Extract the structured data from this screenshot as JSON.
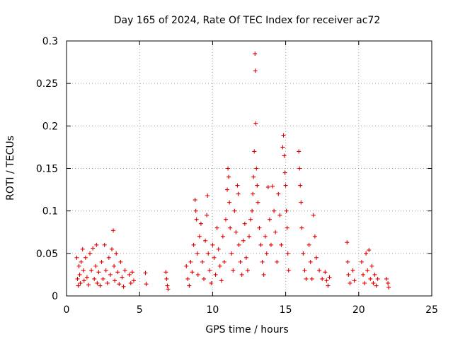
{
  "chart_data": {
    "type": "scatter",
    "title": "Day 165 of 2024, Rate Of TEC Index for receiver ac72",
    "xlabel": "GPS time / hours",
    "ylabel": "ROTI / TECUs",
    "xlim": [
      0,
      25
    ],
    "ylim": [
      0,
      0.3
    ],
    "x_ticks": [
      "0",
      "5",
      "10",
      "15",
      "20",
      "25"
    ],
    "y_ticks": [
      "0",
      "0.05",
      "0.1",
      "0.15",
      "0.2",
      "0.25",
      "0.3"
    ],
    "grid": true,
    "legend": "none",
    "marker": "plus",
    "color": "#e00000",
    "series": [
      {
        "points": [
          [
            0.7,
            0.045
          ],
          [
            0.75,
            0.02
          ],
          [
            0.8,
            0.012
          ],
          [
            0.85,
            0.035
          ],
          [
            0.9,
            0.025
          ],
          [
            0.95,
            0.015
          ],
          [
            1.0,
            0.04
          ],
          [
            1.1,
            0.055
          ],
          [
            1.15,
            0.03
          ],
          [
            1.2,
            0.018
          ],
          [
            1.3,
            0.045
          ],
          [
            1.4,
            0.022
          ],
          [
            1.5,
            0.013
          ],
          [
            1.6,
            0.05
          ],
          [
            1.7,
            0.03
          ],
          [
            1.8,
            0.056
          ],
          [
            1.9,
            0.02
          ],
          [
            2.0,
            0.035
          ],
          [
            2.05,
            0.06
          ],
          [
            2.1,
            0.015
          ],
          [
            2.2,
            0.028
          ],
          [
            2.3,
            0.012
          ],
          [
            2.4,
            0.04
          ],
          [
            2.5,
            0.02
          ],
          [
            2.6,
            0.06
          ],
          [
            2.7,
            0.03
          ],
          [
            2.8,
            0.015
          ],
          [
            2.9,
            0.045
          ],
          [
            3.0,
            0.025
          ],
          [
            3.1,
            0.055
          ],
          [
            3.2,
            0.077
          ],
          [
            3.25,
            0.035
          ],
          [
            3.3,
            0.018
          ],
          [
            3.4,
            0.05
          ],
          [
            3.5,
            0.028
          ],
          [
            3.6,
            0.014
          ],
          [
            3.7,
            0.04
          ],
          [
            3.8,
            0.022
          ],
          [
            3.9,
            0.011
          ],
          [
            4.0,
            0.03
          ],
          [
            4.3,
            0.025
          ],
          [
            4.4,
            0.015
          ],
          [
            4.5,
            0.028
          ],
          [
            4.6,
            0.018
          ],
          [
            5.4,
            0.027
          ],
          [
            5.45,
            0.014
          ],
          [
            6.8,
            0.028
          ],
          [
            6.85,
            0.02
          ],
          [
            6.9,
            0.012
          ],
          [
            6.95,
            0.008
          ],
          [
            8.2,
            0.035
          ],
          [
            8.3,
            0.02
          ],
          [
            8.4,
            0.012
          ],
          [
            8.5,
            0.04
          ],
          [
            8.6,
            0.028
          ],
          [
            8.7,
            0.06
          ],
          [
            8.8,
            0.113
          ],
          [
            8.85,
            0.1
          ],
          [
            8.9,
            0.09
          ],
          [
            8.95,
            0.05
          ],
          [
            9.0,
            0.025
          ],
          [
            9.1,
            0.07
          ],
          [
            9.2,
            0.085
          ],
          [
            9.3,
            0.04
          ],
          [
            9.4,
            0.02
          ],
          [
            9.5,
            0.065
          ],
          [
            9.6,
            0.095
          ],
          [
            9.65,
            0.118
          ],
          [
            9.7,
            0.05
          ],
          [
            9.8,
            0.03
          ],
          [
            9.9,
            0.015
          ],
          [
            10.0,
            0.06
          ],
          [
            10.1,
            0.045
          ],
          [
            10.2,
            0.025
          ],
          [
            10.3,
            0.08
          ],
          [
            10.4,
            0.055
          ],
          [
            10.5,
            0.035
          ],
          [
            10.6,
            0.018
          ],
          [
            10.7,
            0.07
          ],
          [
            10.8,
            0.04
          ],
          [
            10.9,
            0.09
          ],
          [
            11.0,
            0.125
          ],
          [
            11.05,
            0.15
          ],
          [
            11.1,
            0.14
          ],
          [
            11.15,
            0.11
          ],
          [
            11.2,
            0.08
          ],
          [
            11.3,
            0.05
          ],
          [
            11.4,
            0.03
          ],
          [
            11.5,
            0.1
          ],
          [
            11.6,
            0.075
          ],
          [
            11.7,
            0.13
          ],
          [
            11.75,
            0.12
          ],
          [
            11.8,
            0.06
          ],
          [
            11.9,
            0.04
          ],
          [
            12.0,
            0.025
          ],
          [
            12.1,
            0.065
          ],
          [
            12.2,
            0.085
          ],
          [
            12.3,
            0.045
          ],
          [
            12.4,
            0.03
          ],
          [
            12.5,
            0.07
          ],
          [
            12.6,
            0.09
          ],
          [
            12.7,
            0.1
          ],
          [
            12.75,
            0.12
          ],
          [
            12.8,
            0.14
          ],
          [
            12.85,
            0.17
          ],
          [
            12.9,
            0.285
          ],
          [
            12.92,
            0.265
          ],
          [
            12.95,
            0.203
          ],
          [
            13.0,
            0.15
          ],
          [
            13.05,
            0.13
          ],
          [
            13.1,
            0.11
          ],
          [
            13.2,
            0.08
          ],
          [
            13.3,
            0.06
          ],
          [
            13.4,
            0.04
          ],
          [
            13.5,
            0.025
          ],
          [
            13.6,
            0.07
          ],
          [
            13.7,
            0.05
          ],
          [
            13.8,
            0.128
          ],
          [
            13.9,
            0.09
          ],
          [
            14.0,
            0.06
          ],
          [
            14.1,
            0.129
          ],
          [
            14.2,
            0.1
          ],
          [
            14.3,
            0.075
          ],
          [
            14.4,
            0.04
          ],
          [
            14.5,
            0.12
          ],
          [
            14.6,
            0.095
          ],
          [
            14.7,
            0.06
          ],
          [
            14.8,
            0.175
          ],
          [
            14.85,
            0.189
          ],
          [
            14.9,
            0.165
          ],
          [
            14.95,
            0.145
          ],
          [
            15.0,
            0.13
          ],
          [
            15.05,
            0.1
          ],
          [
            15.1,
            0.08
          ],
          [
            15.15,
            0.05
          ],
          [
            15.2,
            0.03
          ],
          [
            15.9,
            0.17
          ],
          [
            15.95,
            0.15
          ],
          [
            16.0,
            0.13
          ],
          [
            16.05,
            0.11
          ],
          [
            16.1,
            0.08
          ],
          [
            16.2,
            0.05
          ],
          [
            16.3,
            0.03
          ],
          [
            16.4,
            0.02
          ],
          [
            16.6,
            0.06
          ],
          [
            16.7,
            0.04
          ],
          [
            16.8,
            0.02
          ],
          [
            16.9,
            0.095
          ],
          [
            17.0,
            0.07
          ],
          [
            17.1,
            0.045
          ],
          [
            17.3,
            0.03
          ],
          [
            17.5,
            0.02
          ],
          [
            17.7,
            0.028
          ],
          [
            17.8,
            0.018
          ],
          [
            17.9,
            0.012
          ],
          [
            18.0,
            0.022
          ],
          [
            19.2,
            0.063
          ],
          [
            19.25,
            0.04
          ],
          [
            19.3,
            0.025
          ],
          [
            19.4,
            0.015
          ],
          [
            19.6,
            0.03
          ],
          [
            19.7,
            0.018
          ],
          [
            20.2,
            0.04
          ],
          [
            20.3,
            0.025
          ],
          [
            20.4,
            0.015
          ],
          [
            20.5,
            0.05
          ],
          [
            20.6,
            0.03
          ],
          [
            20.7,
            0.054
          ],
          [
            20.8,
            0.02
          ],
          [
            20.9,
            0.035
          ],
          [
            21.0,
            0.015
          ],
          [
            21.1,
            0.025
          ],
          [
            21.2,
            0.012
          ],
          [
            21.3,
            0.02
          ],
          [
            21.9,
            0.02
          ],
          [
            22.0,
            0.015
          ],
          [
            22.05,
            0.01
          ]
        ]
      }
    ]
  }
}
